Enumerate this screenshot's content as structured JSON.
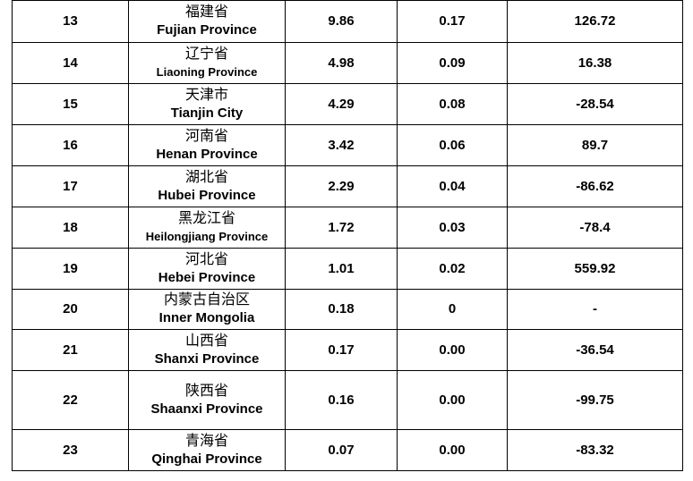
{
  "rows": [
    {
      "rank": "13",
      "name_zh": "福建省",
      "name_en": "Fujian Province",
      "value": "9.86",
      "share": "0.17",
      "growth": "126.72"
    },
    {
      "rank": "14",
      "name_zh": "辽宁省",
      "name_en": "Liaoning Province",
      "value": "4.98",
      "share": "0.09",
      "growth": "16.38"
    },
    {
      "rank": "15",
      "name_zh": "天津市",
      "name_en": "Tianjin City",
      "value": "4.29",
      "share": "0.08",
      "growth": "-28.54"
    },
    {
      "rank": "16",
      "name_zh": "河南省",
      "name_en": "Henan Province",
      "value": "3.42",
      "share": "0.06",
      "growth": "89.7"
    },
    {
      "rank": "17",
      "name_zh": "湖北省",
      "name_en": "Hubei Province",
      "value": "2.29",
      "share": "0.04",
      "growth": "-86.62"
    },
    {
      "rank": "18",
      "name_zh": "黑龙江省",
      "name_en": "Heilongjiang Province",
      "value": "1.72",
      "share": "0.03",
      "growth": "-78.4"
    },
    {
      "rank": "19",
      "name_zh": "河北省",
      "name_en": "Hebei Province",
      "value": "1.01",
      "share": "0.02",
      "growth": "559.92"
    },
    {
      "rank": "20",
      "name_zh": "内蒙古自治区",
      "name_en": "Inner Mongolia",
      "value": "0.18",
      "share": "0",
      "growth": "-"
    },
    {
      "rank": "21",
      "name_zh": "山西省",
      "name_en": "Shanxi Province",
      "value": "0.17",
      "share": "0.00",
      "growth": "-36.54"
    },
    {
      "rank": "22",
      "name_zh": "陕西省",
      "name_en": "Shaanxi Province",
      "value": "0.16",
      "share": "0.00",
      "growth": "-99.75"
    },
    {
      "rank": "23",
      "name_zh": "青海省",
      "name_en": "Qinghai Province",
      "value": "0.07",
      "share": "0.00",
      "growth": "-83.32"
    }
  ]
}
